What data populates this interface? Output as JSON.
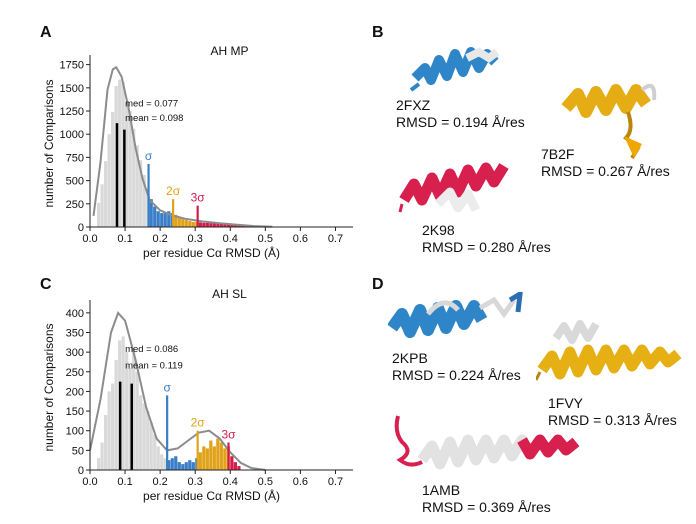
{
  "panels": {
    "A": "A",
    "B": "B",
    "C": "C",
    "D": "D"
  },
  "colors": {
    "hist_gray": "#d9d9d9",
    "sigma1": "#3a7ec8",
    "sigma2": "#e0a21a",
    "sigma3": "#d41c4b",
    "kde": "#8c8c8c",
    "median_line": "#000000"
  },
  "chart_data": [
    {
      "type": "bar",
      "title": "AH MP",
      "xlabel": "per residue Cα RMSD (Å)",
      "ylabel": "number of Comparisons",
      "xlim": [
        0.0,
        0.75
      ],
      "ylim": [
        0,
        1800
      ],
      "xticks": [
        "0.0",
        "0.1",
        "0.2",
        "0.3",
        "0.4",
        "0.5",
        "0.6",
        "0.7"
      ],
      "yticks": [
        "0",
        "250",
        "500",
        "750",
        "1000",
        "1250",
        "1500",
        "1750"
      ],
      "bin_width": 0.01,
      "bin_start": 0.02,
      "values": [
        260,
        460,
        710,
        1000,
        1240,
        1520,
        1590,
        1560,
        1340,
        1250,
        1060,
        880,
        720,
        560,
        420,
        300,
        220,
        170,
        150,
        160,
        170,
        150,
        130,
        110,
        90,
        75,
        65,
        55,
        55,
        50,
        45,
        45,
        42,
        40,
        38,
        35,
        32,
        30,
        28,
        26,
        24,
        22,
        20,
        18,
        16,
        14
      ],
      "kde": {
        "x": [
          0.01,
          0.03,
          0.05,
          0.065,
          0.075,
          0.09,
          0.11,
          0.13,
          0.15,
          0.17,
          0.2,
          0.23,
          0.27,
          0.32,
          0.37,
          0.42,
          0.47,
          0.52
        ],
        "y": [
          120,
          700,
          1480,
          1700,
          1720,
          1620,
          1280,
          850,
          520,
          290,
          180,
          130,
          90,
          60,
          40,
          25,
          10,
          2
        ]
      },
      "sigma_thresholds": [
        0.167,
        0.237,
        0.307
      ],
      "sigma_labels": [
        "σ",
        "2σ",
        "3σ"
      ],
      "median": 0.077,
      "mean": 0.098,
      "annotations": {
        "med": "med = 0.077",
        "mean": "mean = 0.098"
      }
    },
    {
      "type": "bar",
      "title": "AH SL",
      "xlabel": "per residue Cα RMSD (Å)",
      "ylabel": "number of Comparisons",
      "xlim": [
        0.0,
        0.75
      ],
      "ylim": [
        0,
        420
      ],
      "xticks": [
        "0.0",
        "0.1",
        "0.2",
        "0.3",
        "0.4",
        "0.5",
        "0.6",
        "0.7"
      ],
      "yticks": [
        "0",
        "50",
        "100",
        "150",
        "200",
        "250",
        "300",
        "350",
        "400"
      ],
      "bin_width": 0.01,
      "bin_start": 0.02,
      "values": [
        30,
        70,
        140,
        200,
        220,
        280,
        330,
        340,
        300,
        260,
        300,
        250,
        190,
        170,
        150,
        120,
        90,
        60,
        40,
        30,
        25,
        30,
        35,
        20,
        15,
        20,
        25,
        20,
        30,
        45,
        60,
        55,
        75,
        60,
        80,
        70,
        55,
        60,
        35,
        20,
        10
      ],
      "kde": {
        "x": [
          0.0,
          0.03,
          0.06,
          0.08,
          0.1,
          0.13,
          0.16,
          0.19,
          0.22,
          0.25,
          0.28,
          0.31,
          0.34,
          0.37,
          0.4,
          0.43,
          0.46,
          0.5
        ],
        "y": [
          50,
          180,
          350,
          400,
          380,
          280,
          160,
          80,
          50,
          55,
          75,
          95,
          100,
          80,
          45,
          18,
          5,
          0
        ]
      },
      "sigma_thresholds": [
        0.22,
        0.307,
        0.395
      ],
      "sigma_labels": [
        "σ",
        "2σ",
        "3σ"
      ],
      "median": 0.086,
      "mean": 0.119,
      "annotations": {
        "med": "med = 0.086",
        "mean": "mean = 0.119"
      }
    }
  ],
  "structures_B": [
    {
      "id": "2FXZ",
      "rmsd": "RMSD = 0.194 Å/res"
    },
    {
      "id": "7B2F",
      "rmsd": "RMSD = 0.267 Å/res"
    },
    {
      "id": "2K98",
      "rmsd": "RMSD = 0.280 Å/res"
    }
  ],
  "structures_D": [
    {
      "id": "2KPB",
      "rmsd": "RMSD = 0.224 Å/res"
    },
    {
      "id": "1FVY",
      "rmsd": "RMSD = 0.313 Å/res"
    },
    {
      "id": "1AMB",
      "rmsd": "RMSD = 0.369 Å/res"
    }
  ]
}
